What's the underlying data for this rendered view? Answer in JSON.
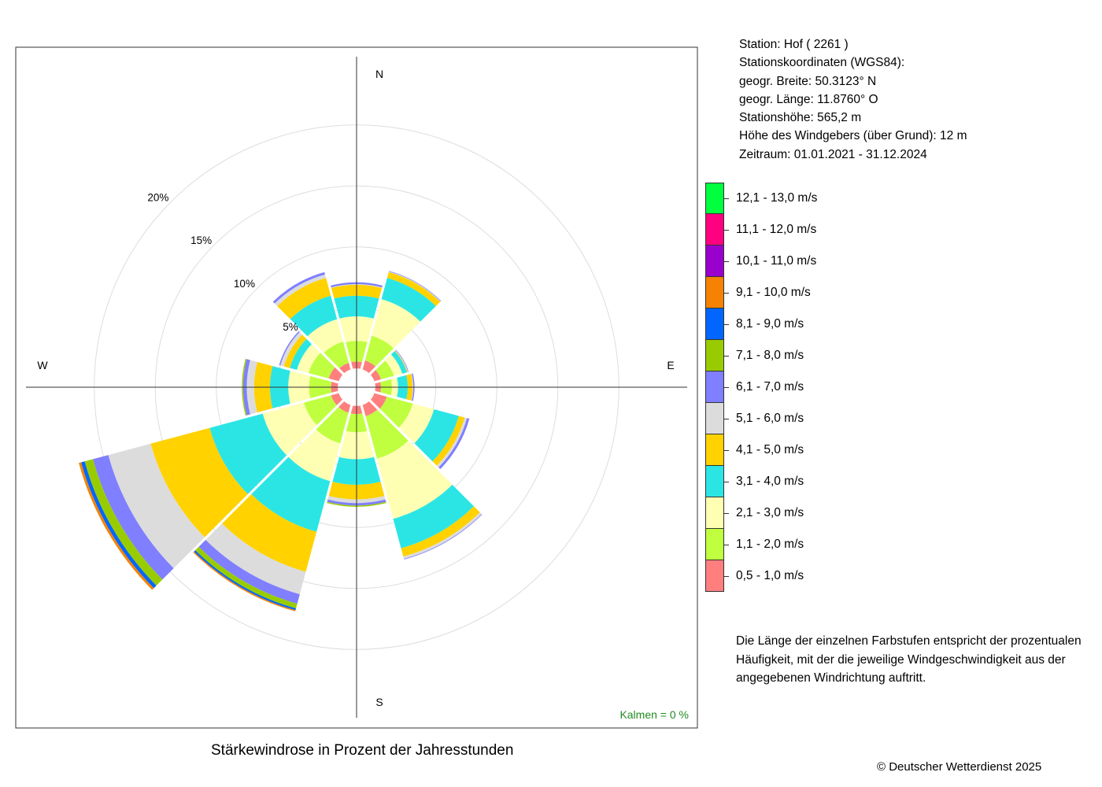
{
  "station": {
    "name_line": "Station:  Hof  ( 2261 )",
    "coords_heading": "Stationskoordinaten (WGS84):",
    "latitude": "geogr. Breite: 50.3123° N",
    "longitude": "geogr. Länge: 11.8760° O",
    "elevation": "Stationshöhe: 565,2 m",
    "anemometer_height": "Höhe des Windgebers (über Grund): 12 m",
    "period": "Zeitraum: 01.01.2021 - 31.12.2024"
  },
  "note": "Die Länge der einzelnen Farbstufen entspricht der prozentualen Häufigkeit, mit der die jeweilige Windgeschwindigkeit aus der angegebenen Windrichtung auftritt.",
  "copyright": "© Deutscher Wetterdienst  2025",
  "calm": "Kalmen  =  0 %",
  "chart_data": {
    "type": "wind-rose",
    "title": "Stärkewindrose in Prozent der Jahresstunden",
    "radial_unit": "%",
    "radial_ticks": [
      5,
      10,
      15,
      20
    ],
    "radial_tick_labels": [
      "5%",
      "10%",
      "15%",
      "20%"
    ],
    "compass_labels": [
      "N",
      "E",
      "S",
      "W"
    ],
    "direction_step_deg": 30,
    "inner_offset_percent": 1.5,
    "grid": true,
    "speed_classes": [
      {
        "label": "0,5 - 1,0 m/s",
        "color": "#FF7F7F"
      },
      {
        "label": "1,1 - 2,0 m/s",
        "color": "#BFFF3F"
      },
      {
        "label": "2,1 - 3,0 m/s",
        "color": "#FFFFB3"
      },
      {
        "label": "3,1 - 4,0 m/s",
        "color": "#2BE5E5"
      },
      {
        "label": "4,1 - 5,0 m/s",
        "color": "#FFD200"
      },
      {
        "label": "5,1 - 6,0 m/s",
        "color": "#DCDCDC"
      },
      {
        "label": "6,1 - 7,0 m/s",
        "color": "#7F7FFF"
      },
      {
        "label": "7,1 - 8,0 m/s",
        "color": "#99CC00"
      },
      {
        "label": "8,1 - 9,0 m/s",
        "color": "#0066FF"
      },
      {
        "label": "9,1 - 10,0 m/s",
        "color": "#F58200"
      },
      {
        "label": "10,1 - 11,0 m/s",
        "color": "#9900CC"
      },
      {
        "label": "11,1 - 12,0 m/s",
        "color": "#FF0080"
      },
      {
        "label": "12,1 - 13,0 m/s",
        "color": "#00FF3F"
      }
    ],
    "directions": [
      0,
      30,
      60,
      90,
      120,
      150,
      180,
      210,
      240,
      270,
      300,
      330
    ],
    "series": [
      {
        "direction": 0,
        "values": [
          0.6,
          1.7,
          2.0,
          1.7,
          0.9,
          0.05,
          0.15
        ]
      },
      {
        "direction": 30,
        "values": [
          0.8,
          2.1,
          3.1,
          1.8,
          0.5,
          0.05,
          0.05
        ]
      },
      {
        "direction": 60,
        "values": [
          0.6,
          1.1,
          0.7,
          0.4,
          0.05,
          0.05,
          0.05
        ]
      },
      {
        "direction": 90,
        "values": [
          0.5,
          0.9,
          0.5,
          0.8,
          0.4,
          0.05,
          0.1
        ]
      },
      {
        "direction": 120,
        "values": [
          1.1,
          2.2,
          1.8,
          2.1,
          0.5,
          0.2,
          0.2
        ]
      },
      {
        "direction": 150,
        "values": [
          1.0,
          3.6,
          5.1,
          2.5,
          0.7,
          0.2,
          0.05
        ]
      },
      {
        "direction": 180,
        "values": [
          0.7,
          1.5,
          2.2,
          2.1,
          1.2,
          0.3,
          0.2,
          0.1
        ]
      },
      {
        "direction": 210,
        "values": [
          0.7,
          2.6,
          3.2,
          4.3,
          3.4,
          1.9,
          0.8,
          0.4,
          0.15,
          0.1
        ]
      },
      {
        "direction": 240,
        "values": [
          0.7,
          2.3,
          3.5,
          4.5,
          5.0,
          3.6,
          1.3,
          0.7,
          0.3,
          0.2
        ]
      },
      {
        "direction": 270,
        "values": [
          0.6,
          1.8,
          1.7,
          1.5,
          1.3,
          0.6,
          0.3,
          0.1
        ]
      },
      {
        "direction": 300,
        "values": [
          0.9,
          1.7,
          1.0,
          0.6,
          0.5,
          0.3,
          0.1
        ]
      },
      {
        "direction": 330,
        "values": [
          0.6,
          1.8,
          1.9,
          2.0,
          1.5,
          0.3,
          0.2
        ]
      }
    ]
  }
}
